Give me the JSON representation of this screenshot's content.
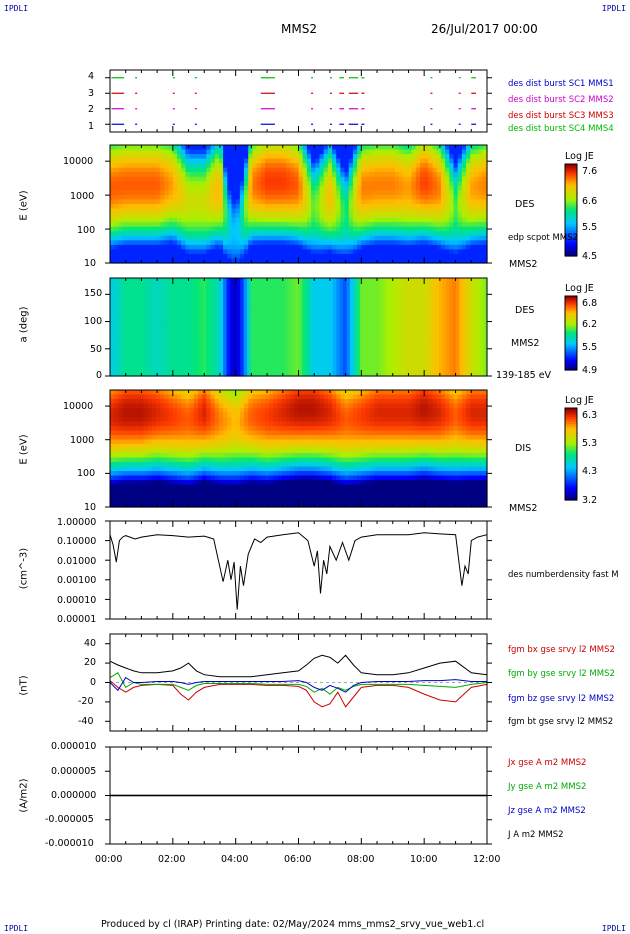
{
  "header": {
    "corner_left_top": "IPDLI",
    "corner_right_top": "IPDLI",
    "corner_left_bottom": "IPDLI",
    "corner_right_bottom": "IPDLI",
    "spacecraft": "MMS2",
    "date": "26/Jul/2017 00:00"
  },
  "footer": {
    "text": "Produced by cl (IRAP)   Printing date: 02/May/2024   mms_mms2_srvy_vue_web1.cl"
  },
  "time_axis": {
    "ticks": [
      "00:00",
      "02:00",
      "04:00",
      "06:00",
      "08:00",
      "10:00",
      "12:00"
    ],
    "range_hours": [
      0,
      12
    ]
  },
  "panels": {
    "burst": {
      "yticks": [
        "4",
        "3",
        "2",
        "1"
      ],
      "legend": [
        {
          "text": "des dist burst SC1 MMS1",
          "color": "#0000cc"
        },
        {
          "text": "des dist burst SC2 MMS2",
          "color": "#cc00cc"
        },
        {
          "text": "des dist burst SC3 MMS3",
          "color": "#cc0000"
        },
        {
          "text": "des dist burst SC4 MMS4",
          "color": "#00bb00"
        }
      ]
    },
    "des_energy": {
      "ylabel": "E (eV)",
      "yticks": [
        "10000",
        "1000",
        "100",
        "10"
      ],
      "name": "DES",
      "overlay": "edp scpot MMS2",
      "sc": "MMS2",
      "cbar_title": "Log JE",
      "cbar_ticks": [
        "7.6",
        "6.6",
        "5.5",
        "4.5"
      ]
    },
    "des_pitch": {
      "ylabel": "a (deg)",
      "yticks": [
        "150",
        "100",
        "50",
        "0"
      ],
      "name": "DES",
      "sc": "MMS2",
      "energy_range": "139-185 eV",
      "cbar_title": "Log JE",
      "cbar_ticks": [
        "6.8",
        "6.2",
        "5.5",
        "4.9"
      ]
    },
    "dis_energy": {
      "ylabel": "E (eV)",
      "yticks": [
        "10000",
        "1000",
        "100",
        "10"
      ],
      "name": "DIS",
      "sc": "MMS2",
      "cbar_title": "Log JE",
      "cbar_ticks": [
        "6.3",
        "5.3",
        "4.3",
        "3.2"
      ]
    },
    "density": {
      "ylabel": "(cm^-3)",
      "yticks": [
        "1.00000",
        "0.10000",
        "0.01000",
        "0.00100",
        "0.00010",
        "0.00001"
      ],
      "legend": "des numberdensity fast M"
    },
    "bfield": {
      "ylabel": "(nT)",
      "yticks": [
        "40",
        "20",
        "0",
        "-20",
        "-40"
      ],
      "legend": [
        {
          "text": "fgm bx gse srvy l2 MMS2",
          "color": "#cc0000"
        },
        {
          "text": "fgm by gse srvy l2 MMS2",
          "color": "#00aa00"
        },
        {
          "text": "fgm bz gse srvy l2 MMS2",
          "color": "#0000cc"
        },
        {
          "text": "fgm bt gse srvy l2 MMS2",
          "color": "#000000"
        }
      ]
    },
    "current": {
      "ylabel": "(A/m2)",
      "yticks": [
        "0.000010",
        "0.000005",
        "0.000000",
        "-0.000005",
        "-0.000010"
      ],
      "legend": [
        {
          "text": "Jx gse A m2 MMS2",
          "color": "#cc0000"
        },
        {
          "text": "Jy gse A m2 MMS2",
          "color": "#00aa00"
        },
        {
          "text": "Jz gse A m2 MMS2",
          "color": "#0000cc"
        },
        {
          "text": "J A m2 MMS2",
          "color": "#000000"
        }
      ]
    }
  },
  "chart_data": [
    {
      "type": "scatter",
      "panel": "burst",
      "xlabel": "UT (hours)",
      "ylim": [
        0.5,
        4.5
      ],
      "series": [
        {
          "name": "des dist burst SC4 MMS4",
          "y": 4,
          "intervals_h": [
            [
              0.05,
              0.45
            ],
            [
              0.8,
              0.85
            ],
            [
              2.0,
              2.05
            ],
            [
              2.7,
              2.75
            ],
            [
              4.8,
              5.25
            ],
            [
              6.4,
              6.45
            ],
            [
              7.0,
              7.05
            ],
            [
              7.3,
              7.45
            ],
            [
              7.6,
              7.9
            ],
            [
              8.0,
              8.1
            ],
            [
              10.2,
              10.25
            ],
            [
              11.1,
              11.15
            ],
            [
              11.5,
              11.65
            ]
          ]
        },
        {
          "name": "des dist burst SC3 MMS3",
          "y": 3,
          "intervals_h": [
            [
              0.05,
              0.45
            ],
            [
              0.8,
              0.85
            ],
            [
              2.0,
              2.05
            ],
            [
              2.7,
              2.75
            ],
            [
              4.8,
              5.25
            ],
            [
              6.4,
              6.45
            ],
            [
              7.0,
              7.05
            ],
            [
              7.3,
              7.45
            ],
            [
              7.6,
              7.9
            ],
            [
              8.0,
              8.1
            ],
            [
              10.2,
              10.25
            ],
            [
              11.1,
              11.15
            ],
            [
              11.5,
              11.65
            ]
          ]
        },
        {
          "name": "des dist burst SC2 MMS2",
          "y": 2,
          "intervals_h": [
            [
              0.05,
              0.45
            ],
            [
              0.8,
              0.85
            ],
            [
              2.0,
              2.05
            ],
            [
              2.7,
              2.75
            ],
            [
              4.8,
              5.25
            ],
            [
              6.4,
              6.45
            ],
            [
              7.0,
              7.05
            ],
            [
              7.3,
              7.45
            ],
            [
              7.6,
              7.9
            ],
            [
              8.0,
              8.1
            ],
            [
              10.2,
              10.25
            ],
            [
              11.1,
              11.15
            ],
            [
              11.5,
              11.65
            ]
          ]
        },
        {
          "name": "des dist burst SC1 MMS1",
          "y": 1,
          "intervals_h": [
            [
              0.05,
              0.45
            ],
            [
              0.8,
              0.85
            ],
            [
              2.0,
              2.05
            ],
            [
              2.7,
              2.75
            ],
            [
              4.8,
              5.25
            ],
            [
              6.4,
              6.45
            ],
            [
              7.0,
              7.05
            ],
            [
              7.3,
              7.45
            ],
            [
              7.6,
              7.9
            ],
            [
              8.0,
              8.1
            ],
            [
              10.2,
              10.25
            ],
            [
              11.1,
              11.15
            ],
            [
              11.5,
              11.65
            ]
          ]
        }
      ]
    },
    {
      "type": "heatmap",
      "panel": "des_energy",
      "ylabel": "E (eV)",
      "yscale": "log",
      "ylim": [
        10,
        30000
      ],
      "zlabel": "Log JE",
      "zlim": [
        4.5,
        7.6
      ],
      "x_hours": [
        0,
        0.5,
        1,
        1.5,
        2,
        2.5,
        3,
        3.5,
        3.75,
        4,
        4.25,
        4.5,
        5,
        5.5,
        6,
        6.5,
        7,
        7.5,
        8,
        8.5,
        9,
        9.5,
        10,
        10.5,
        11,
        11.5,
        12
      ],
      "peak_log_energy": [
        3.2,
        3.3,
        3.3,
        3.3,
        3.3,
        2.8,
        2.8,
        3.2,
        2.2,
        1.8,
        2.4,
        3.3,
        3.4,
        3.4,
        3.3,
        2.6,
        3.0,
        2.4,
        3.2,
        3.3,
        3.3,
        3.2,
        3.4,
        3.2,
        2.6,
        3.2,
        3.3
      ],
      "peak_log_je": [
        7.2,
        7.2,
        7.2,
        7.2,
        7.0,
        6.6,
        6.6,
        7.0,
        5.8,
        5.5,
        6.0,
        7.1,
        7.3,
        7.3,
        7.2,
        6.2,
        6.9,
        6.0,
        7.1,
        7.1,
        7.1,
        7.0,
        7.3,
        7.1,
        6.2,
        7.0,
        7.1
      ]
    },
    {
      "type": "heatmap",
      "panel": "des_pitch",
      "ylabel": "a (deg)",
      "ylim": [
        0,
        180
      ],
      "zlabel": "Log JE",
      "zlim": [
        4.9,
        6.8
      ],
      "energy_range": "139-185 eV",
      "x_hours": [
        0,
        0.5,
        1,
        1.5,
        2,
        2.5,
        3,
        3.5,
        3.75,
        4,
        4.25,
        4.5,
        5,
        5.5,
        6,
        6.5,
        7,
        7.5,
        8,
        8.5,
        9,
        9.5,
        10,
        10.5,
        11,
        11.5,
        12
      ],
      "mean_log_je": [
        5.6,
        5.8,
        5.8,
        5.7,
        5.8,
        5.8,
        5.9,
        5.7,
        5.2,
        5.0,
        5.3,
        5.9,
        5.9,
        5.9,
        6.0,
        5.6,
        5.6,
        5.3,
        6.0,
        6.0,
        6.1,
        6.2,
        6.2,
        6.4,
        6.5,
        6.2,
        6.0
      ]
    },
    {
      "type": "heatmap",
      "panel": "dis_energy",
      "ylabel": "E (eV)",
      "yscale": "log",
      "ylim": [
        10,
        30000
      ],
      "zlabel": "Log JE",
      "zlim": [
        3.2,
        6.3
      ],
      "x_hours": [
        0,
        0.5,
        1,
        1.5,
        2,
        2.5,
        3,
        3.5,
        4,
        4.5,
        5,
        5.5,
        6,
        6.5,
        7,
        7.5,
        8,
        8.5,
        9,
        9.5,
        10,
        10.5,
        11,
        11.5,
        12
      ],
      "peak_log_energy": [
        3.7,
        3.8,
        3.8,
        3.8,
        3.7,
        3.6,
        3.8,
        3.6,
        3.5,
        3.7,
        3.7,
        3.8,
        3.9,
        3.9,
        3.8,
        3.6,
        3.7,
        3.8,
        3.8,
        3.8,
        3.9,
        3.8,
        3.7,
        3.8,
        3.8
      ],
      "peak_log_je": [
        6.1,
        6.2,
        6.2,
        6.1,
        6.0,
        5.9,
        6.1,
        5.8,
        5.6,
        5.9,
        6.0,
        6.1,
        6.2,
        6.2,
        6.1,
        5.9,
        6.0,
        6.1,
        6.1,
        6.1,
        6.2,
        6.1,
        5.9,
        6.1,
        6.1
      ]
    },
    {
      "type": "line",
      "panel": "density",
      "ylabel": "(cm^-3)",
      "yscale": "log",
      "ylim": [
        1e-05,
        1.0
      ],
      "x": [
        0,
        0.1,
        0.2,
        0.3,
        0.4,
        0.5,
        0.8,
        1.0,
        1.5,
        2.0,
        2.5,
        3.0,
        3.3,
        3.6,
        3.75,
        3.85,
        3.95,
        4.05,
        4.15,
        4.25,
        4.4,
        4.6,
        4.8,
        5.0,
        5.5,
        6.0,
        6.3,
        6.5,
        6.6,
        6.7,
        6.8,
        6.9,
        7.0,
        7.2,
        7.4,
        7.6,
        7.8,
        8.0,
        8.5,
        9.0,
        9.5,
        10.0,
        10.5,
        11.0,
        11.1,
        11.2,
        11.3,
        11.4,
        11.5,
        11.7,
        12.0
      ],
      "y": [
        0.2,
        0.06,
        0.008,
        0.1,
        0.15,
        0.18,
        0.12,
        0.15,
        0.2,
        0.18,
        0.15,
        0.17,
        0.12,
        0.0008,
        0.01,
        0.001,
        0.008,
        3e-05,
        0.005,
        0.0005,
        0.02,
        0.12,
        0.08,
        0.15,
        0.2,
        0.25,
        0.1,
        0.005,
        0.03,
        0.0002,
        0.01,
        0.002,
        0.05,
        0.01,
        0.08,
        0.01,
        0.1,
        0.15,
        0.2,
        0.2,
        0.2,
        0.25,
        0.22,
        0.2,
        0.01,
        0.0005,
        0.005,
        0.002,
        0.1,
        0.15,
        0.2
      ]
    },
    {
      "type": "line",
      "panel": "bfield",
      "ylabel": "(nT)",
      "ylim": [
        -50,
        50
      ],
      "x": [
        0,
        0.25,
        0.5,
        0.75,
        1,
        1.5,
        2,
        2.25,
        2.5,
        2.75,
        3,
        3.5,
        4,
        4.5,
        5,
        5.5,
        6,
        6.25,
        6.5,
        6.75,
        7,
        7.25,
        7.5,
        7.75,
        8,
        8.5,
        9,
        9.5,
        10,
        10.5,
        11,
        11.5,
        12
      ],
      "series": [
        {
          "name": "fgm bx gse srvy l2 MMS2",
          "color": "#cc0000",
          "values": [
            2,
            -5,
            -10,
            -5,
            -3,
            -2,
            -3,
            -12,
            -18,
            -10,
            -5,
            -2,
            -2,
            -2,
            -3,
            -3,
            -4,
            -8,
            -20,
            -25,
            -22,
            -10,
            -25,
            -15,
            -5,
            -3,
            -3,
            -5,
            -12,
            -18,
            -20,
            -5,
            -2
          ]
        },
        {
          "name": "fgm by gse srvy l2 MMS2",
          "color": "#00aa00",
          "values": [
            5,
            10,
            -5,
            0,
            -2,
            -2,
            -2,
            -5,
            -8,
            -3,
            -1,
            -1,
            -1,
            -1,
            -2,
            -2,
            -2,
            -4,
            -10,
            -6,
            -12,
            -5,
            -8,
            -4,
            -2,
            -2,
            -2,
            -2,
            -3,
            -4,
            -5,
            -2,
            0
          ]
        },
        {
          "name": "fgm bz gse srvy l2 MMS2",
          "color": "#0000cc",
          "values": [
            0,
            -8,
            5,
            0,
            0,
            1,
            1,
            0,
            -2,
            0,
            1,
            1,
            1,
            1,
            1,
            1,
            2,
            0,
            -5,
            -8,
            -3,
            -6,
            -10,
            -3,
            0,
            1,
            1,
            1,
            2,
            2,
            3,
            1,
            1
          ]
        },
        {
          "name": "fgm bt gse srvy l2 MMS2",
          "color": "#000000",
          "values": [
            22,
            18,
            15,
            12,
            10,
            10,
            12,
            15,
            20,
            12,
            8,
            6,
            6,
            6,
            8,
            10,
            12,
            18,
            25,
            28,
            26,
            20,
            28,
            18,
            10,
            8,
            8,
            10,
            15,
            20,
            22,
            10,
            8
          ]
        }
      ]
    },
    {
      "type": "line",
      "panel": "current",
      "ylabel": "(A/m2)",
      "ylim": [
        -1e-05,
        1e-05
      ],
      "x": [
        0,
        2,
        4,
        6,
        8,
        10,
        12
      ],
      "series": [
        {
          "name": "Jx gse A m2 MMS2",
          "color": "#cc0000",
          "values": [
            0,
            0,
            0,
            0,
            0,
            0,
            0
          ]
        },
        {
          "name": "Jy gse A m2 MMS2",
          "color": "#00aa00",
          "values": [
            0,
            0,
            0,
            0,
            0,
            0,
            0
          ]
        },
        {
          "name": "Jz gse A m2 MMS2",
          "color": "#0000cc",
          "values": [
            0,
            0,
            0,
            0,
            0,
            0,
            0
          ]
        },
        {
          "name": "J A m2 MMS2",
          "color": "#000000",
          "values": [
            0,
            0,
            0,
            0,
            0,
            0,
            0
          ]
        }
      ]
    }
  ]
}
